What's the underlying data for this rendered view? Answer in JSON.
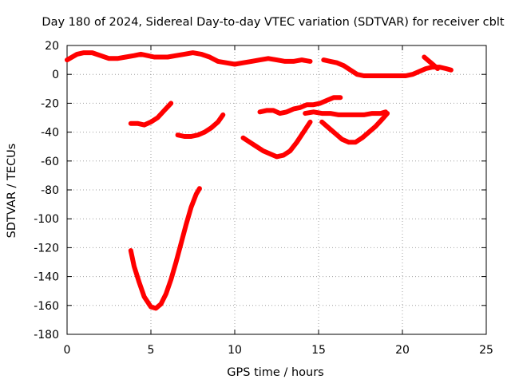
{
  "chart_data": {
    "type": "line",
    "title": "Day 180 of 2024, Sidereal Day-to-day VTEC variation (SDTVAR) for receiver cblt",
    "xlabel": "GPS time / hours",
    "ylabel": "SDTVAR / TECUs",
    "xlim": [
      0,
      25
    ],
    "ylim": [
      -180,
      20
    ],
    "xticks": [
      0,
      5,
      10,
      15,
      20,
      25
    ],
    "yticks": [
      20,
      0,
      -20,
      -40,
      -60,
      -80,
      -100,
      -120,
      -140,
      -160,
      -180
    ],
    "grid": true,
    "color": "#ff0000",
    "series": [
      {
        "x": [
          0.0,
          0.3,
          0.6,
          1.0,
          1.5,
          2.0,
          2.5,
          3.0,
          3.5,
          4.0,
          4.4,
          4.8,
          5.2,
          5.6,
          6.0,
          6.5,
          7.0,
          7.5,
          8.0,
          8.5,
          9.0,
          9.5,
          10.0,
          10.5,
          11.0,
          11.5,
          12.0,
          12.5,
          13.0,
          13.5,
          14.0,
          14.5
        ],
        "y": [
          10,
          12,
          14,
          15,
          15,
          13,
          11,
          11,
          12,
          13,
          14,
          13,
          12,
          12,
          12,
          13,
          14,
          15,
          14,
          12,
          9,
          8,
          7,
          8,
          9,
          10,
          11,
          10,
          9,
          9,
          10,
          9
        ]
      },
      {
        "x": [
          15.3,
          15.7,
          16.1,
          16.5,
          16.9,
          17.3,
          17.7,
          18.2,
          18.7,
          19.2,
          19.7,
          20.2,
          20.6,
          21.0,
          21.4,
          21.8,
          22.2,
          22.6,
          22.9
        ],
        "y": [
          10,
          9,
          8,
          6,
          3,
          0,
          -1,
          -1,
          -1,
          -1,
          -1,
          -1,
          0,
          2,
          4,
          5,
          5,
          4,
          3
        ]
      },
      {
        "x": [
          21.3,
          21.5,
          21.7,
          21.9,
          22.1
        ],
        "y": [
          12,
          10,
          8,
          6,
          4
        ]
      },
      {
        "x": [
          3.8,
          4.2,
          4.6,
          5.0,
          5.4,
          5.8,
          6.2
        ],
        "y": [
          -34,
          -34,
          -35,
          -33,
          -30,
          -25,
          -20
        ]
      },
      {
        "x": [
          6.6,
          7.0,
          7.4,
          7.8,
          8.2,
          8.6,
          9.0,
          9.3
        ],
        "y": [
          -42,
          -43,
          -43,
          -42,
          -40,
          -37,
          -33,
          -28
        ]
      },
      {
        "x": [
          10.5,
          10.9,
          11.3,
          11.7,
          12.1,
          12.5,
          12.9,
          13.3,
          13.7,
          14.1,
          14.5
        ],
        "y": [
          -44,
          -47,
          -50,
          -53,
          -55,
          -57,
          -56,
          -53,
          -47,
          -40,
          -33
        ]
      },
      {
        "x": [
          11.5,
          11.9,
          12.3,
          12.7,
          13.1,
          13.5,
          13.9,
          14.3,
          14.7,
          15.1,
          15.5,
          15.9,
          16.3
        ],
        "y": [
          -26,
          -25,
          -25,
          -27,
          -26,
          -24,
          -23,
          -21,
          -21,
          -20,
          -18,
          -16,
          -16
        ]
      },
      {
        "x": [
          14.2,
          14.7,
          15.2,
          15.7,
          16.2,
          16.7,
          17.2,
          17.7,
          18.2,
          18.7,
          19.0
        ],
        "y": [
          -27,
          -26,
          -27,
          -27,
          -28,
          -28,
          -28,
          -28,
          -27,
          -27,
          -26
        ]
      },
      {
        "x": [
          15.2,
          15.6,
          16.0,
          16.4,
          16.8,
          17.2,
          17.6,
          18.0,
          18.4,
          18.8,
          19.1
        ],
        "y": [
          -33,
          -37,
          -41,
          -45,
          -47,
          -47,
          -44,
          -40,
          -36,
          -31,
          -27
        ]
      },
      {
        "x": [
          3.8,
          4.0,
          4.3,
          4.6,
          5.0,
          5.3,
          5.6,
          5.9,
          6.2,
          6.5,
          6.8,
          7.1,
          7.4,
          7.7,
          7.9
        ],
        "y": [
          -122,
          -133,
          -144,
          -154,
          -161,
          -162,
          -159,
          -152,
          -142,
          -130,
          -117,
          -104,
          -92,
          -83,
          -79
        ]
      }
    ]
  }
}
